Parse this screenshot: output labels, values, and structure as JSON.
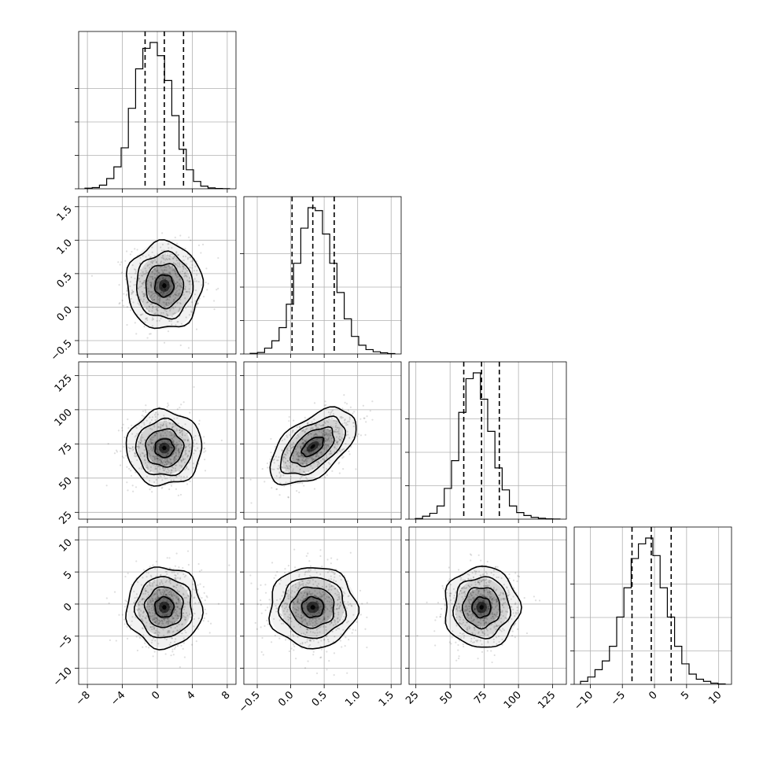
{
  "figure": {
    "type": "corner-plot"
  },
  "chart_data": {
    "type": "corner",
    "parameters": [
      {
        "key": "p0",
        "range": [
          -9,
          9
        ],
        "median": 0.8,
        "q16": -1.4,
        "q84": 3.0,
        "ticks": [
          -8,
          -4,
          0,
          4,
          8
        ],
        "tick_labels": [
          "−8",
          "−4",
          "0",
          "4",
          "8"
        ]
      },
      {
        "key": "p1",
        "range": [
          -0.7,
          1.65
        ],
        "median": 0.33,
        "q16": 0.02,
        "q84": 0.65,
        "ticks": [
          -0.5,
          0.0,
          0.5,
          1.0,
          1.5
        ],
        "tick_labels": [
          "−0.5",
          "0.0",
          "0.5",
          "1.0",
          "1.5"
        ]
      },
      {
        "key": "p2",
        "range": [
          20,
          135
        ],
        "median": 73,
        "q16": 60,
        "q84": 86,
        "ticks": [
          25,
          50,
          75,
          100,
          125
        ],
        "tick_labels": [
          "25",
          "50",
          "75",
          "100",
          "125"
        ]
      },
      {
        "key": "p3",
        "range": [
          -12.5,
          12
        ],
        "median": -0.5,
        "q16": -3.5,
        "q84": 2.6,
        "ticks": [
          -10,
          -5,
          0,
          5,
          10
        ],
        "tick_labels": [
          "−10",
          "−5",
          "0",
          "5",
          "10"
        ]
      }
    ],
    "histograms": [
      {
        "param": "p0",
        "bins": 20,
        "counts": [
          0.004,
          0.008,
          0.025,
          0.07,
          0.15,
          0.28,
          0.55,
          0.82,
          0.96,
          1.0,
          0.91,
          0.74,
          0.5,
          0.27,
          0.13,
          0.05,
          0.018,
          0.006,
          0.002,
          0.001
        ]
      },
      {
        "param": "p1",
        "bins": 20,
        "counts": [
          0.004,
          0.01,
          0.04,
          0.09,
          0.18,
          0.34,
          0.62,
          0.86,
          1.0,
          0.98,
          0.82,
          0.62,
          0.42,
          0.24,
          0.12,
          0.06,
          0.03,
          0.015,
          0.008,
          0.003
        ]
      },
      {
        "param": "p2",
        "bins": 20,
        "counts": [
          0.004,
          0.02,
          0.04,
          0.09,
          0.21,
          0.4,
          0.73,
          0.96,
          1.0,
          0.82,
          0.6,
          0.35,
          0.2,
          0.09,
          0.045,
          0.025,
          0.012,
          0.006,
          0.002,
          0.001
        ]
      },
      {
        "param": "p3",
        "bins": 20,
        "counts": [
          0.02,
          0.05,
          0.1,
          0.16,
          0.26,
          0.46,
          0.66,
          0.86,
          0.96,
          1.0,
          0.88,
          0.66,
          0.46,
          0.26,
          0.14,
          0.07,
          0.035,
          0.02,
          0.008,
          0.003
        ]
      }
    ],
    "pairs": [
      {
        "x": "p0",
        "y": "p1",
        "center": [
          0.8,
          0.32
        ],
        "sigma": [
          2.05,
          0.31
        ],
        "rho": 0.0
      },
      {
        "x": "p0",
        "y": "p2",
        "center": [
          0.8,
          72
        ],
        "sigma": [
          2.05,
          13
        ],
        "rho": 0.0
      },
      {
        "x": "p1",
        "y": "p2",
        "center": [
          0.33,
          73
        ],
        "sigma": [
          0.31,
          13
        ],
        "rho": 0.55
      },
      {
        "x": "p0",
        "y": "p3",
        "center": [
          0.8,
          -0.5
        ],
        "sigma": [
          2.05,
          3.0
        ],
        "rho": 0.0
      },
      {
        "x": "p1",
        "y": "p3",
        "center": [
          0.33,
          -0.5
        ],
        "sigma": [
          0.31,
          3.0
        ],
        "rho": 0.0
      },
      {
        "x": "p2",
        "y": "p3",
        "center": [
          73,
          -0.5
        ],
        "sigma": [
          13,
          3.0
        ],
        "rho": 0.0
      }
    ],
    "contour_levels_sigma": [
      0.5,
      1.0,
      1.5,
      2.0
    ],
    "grid": true,
    "colors": {
      "line": "#000000",
      "grid": "#b0b0b0",
      "scatter": "#000000",
      "density": "#000000"
    }
  }
}
